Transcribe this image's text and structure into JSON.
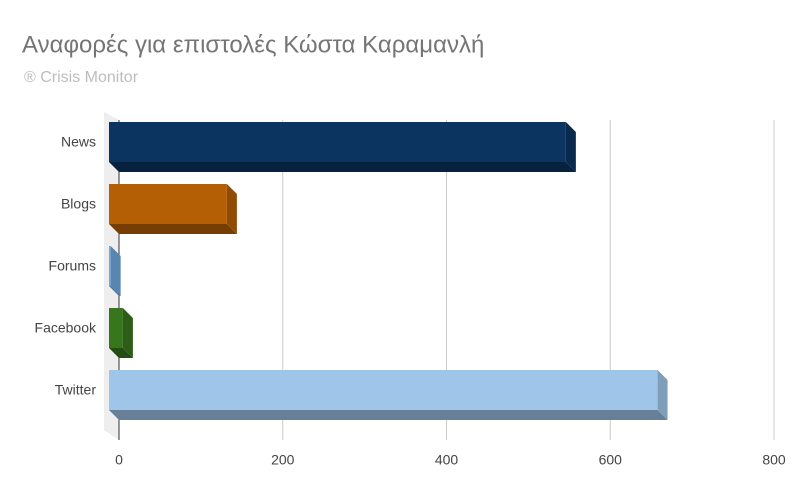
{
  "chart_data": {
    "type": "bar3d",
    "orientation": "horizontal",
    "title": "Αναφορές για επιστολές Κώστα Καραμανλή",
    "subtitle": "® Crisis Monitor",
    "categories": [
      "News",
      "Blogs",
      "Forums",
      "Facebook",
      "Twitter"
    ],
    "values": [
      558,
      144,
      2,
      17,
      670
    ],
    "colors": [
      "#0b3560",
      "#b45f06",
      "#6fa8dc",
      "#38761d",
      "#9fc5e8"
    ],
    "xlim": [
      0,
      800
    ],
    "xticks": [
      0,
      200,
      400,
      600,
      800
    ],
    "grid": true
  }
}
